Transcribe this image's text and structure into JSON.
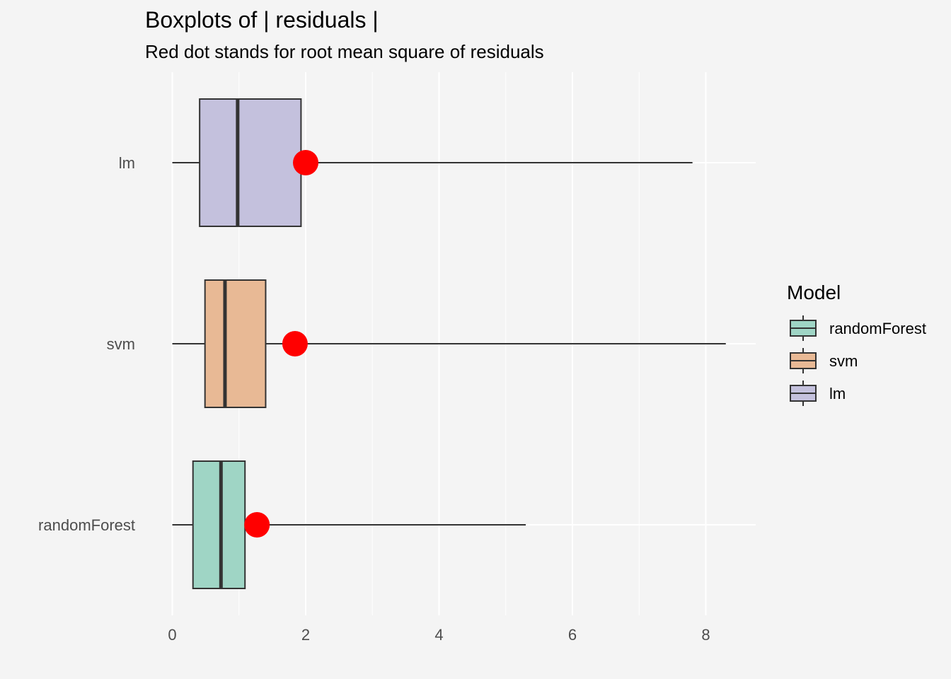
{
  "chart_data": {
    "type": "boxplot",
    "title": "Boxplots of | residuals |",
    "subtitle": "Red dot stands for root mean square of residuals",
    "xlabel": "",
    "ylabel": "",
    "xlim": [
      -0.1,
      8.7
    ],
    "x_ticks": [
      0,
      2,
      4,
      6,
      8
    ],
    "grid": true,
    "legend": {
      "title": "Model",
      "position": "right",
      "entries": [
        "randomForest",
        "svm",
        "lm"
      ]
    },
    "categories": [
      "randomForest",
      "svm",
      "lm"
    ],
    "series": [
      {
        "name": "randomForest",
        "min": 0.0,
        "q1": 0.31,
        "median": 0.73,
        "q3": 1.09,
        "max": 5.3,
        "rmse": 1.27,
        "color": "#9fd5c5"
      },
      {
        "name": "svm",
        "min": 0.0,
        "q1": 0.49,
        "median": 0.79,
        "q3": 1.4,
        "max": 8.3,
        "rmse": 1.84,
        "color": "#e8b995"
      },
      {
        "name": "lm",
        "min": 0.0,
        "q1": 0.41,
        "median": 0.98,
        "q3": 1.93,
        "max": 7.8,
        "rmse": 2.0,
        "color": "#c4c1dd"
      }
    ],
    "colors": {
      "background": "#f4f4f4",
      "grid": "#ffffff",
      "rmse_dot": "#ff0000",
      "outline": "#333333"
    }
  }
}
